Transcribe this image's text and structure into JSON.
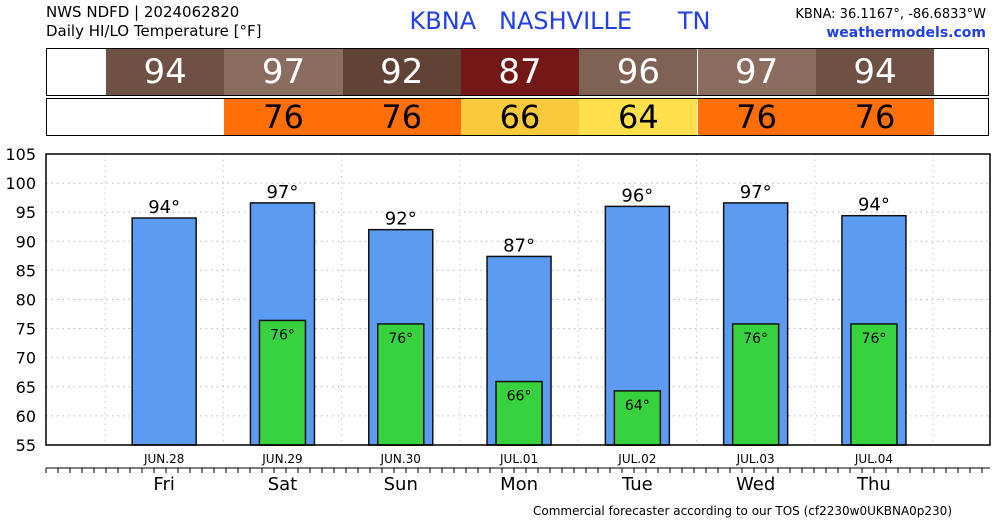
{
  "header": {
    "line1": "NWS NDFD | 2024062820",
    "line2": "Daily HI/LO Temperature [°F]",
    "station": "KBNA   NASHVILLE      TN",
    "coords": "KBNA: 36.1167°, -86.6833°W",
    "site": "weathermodels.com"
  },
  "hi_strip": [
    {
      "value": "94",
      "color": "#6e5144"
    },
    {
      "value": "97",
      "color": "#8a6d60"
    },
    {
      "value": "92",
      "color": "#604236"
    },
    {
      "value": "87",
      "color": "#731717"
    },
    {
      "value": "96",
      "color": "#7e6256"
    },
    {
      "value": "97",
      "color": "#8a6d60"
    },
    {
      "value": "94",
      "color": "#6e5144"
    }
  ],
  "lo_strip": [
    {
      "value": "",
      "color": "#ffffff"
    },
    {
      "value": "76",
      "color": "#ff6f05"
    },
    {
      "value": "76",
      "color": "#ff6f05"
    },
    {
      "value": "66",
      "color": "#fbc93c"
    },
    {
      "value": "64",
      "color": "#fde04c"
    },
    {
      "value": "76",
      "color": "#ff6f05"
    },
    {
      "value": "76",
      "color": "#ff6f05"
    }
  ],
  "chart_data": {
    "type": "bar",
    "categories": [
      "Fri",
      "Sat",
      "Sun",
      "Mon",
      "Tue",
      "Wed",
      "Thu"
    ],
    "dates": [
      "JUN.28",
      "JUN.29",
      "JUN.30",
      "JUL.01",
      "JUL.02",
      "JUL.03",
      "JUL.04"
    ],
    "series": [
      {
        "values": [
          94,
          96.6,
          92,
          87.4,
          96,
          96.6,
          94.4
        ],
        "color": "#5b9cf2",
        "labels": [
          "94°",
          "97°",
          "92°",
          "87°",
          "96°",
          "97°",
          "94°"
        ]
      },
      {
        "values": [
          null,
          76.4,
          75.8,
          65.9,
          64.3,
          75.8,
          75.8
        ],
        "color": "#37d23d",
        "labels": [
          "",
          "76°",
          "76°",
          "66°",
          "64°",
          "76°",
          "76°"
        ]
      }
    ],
    "ylim": [
      55,
      105
    ],
    "yticks": [
      55,
      60,
      65,
      70,
      75,
      80,
      85,
      90,
      95,
      100,
      105
    ],
    "grid": true
  },
  "footer": "Commercial forecaster according to our TOS (cf2230w0UKBNA0p230)"
}
